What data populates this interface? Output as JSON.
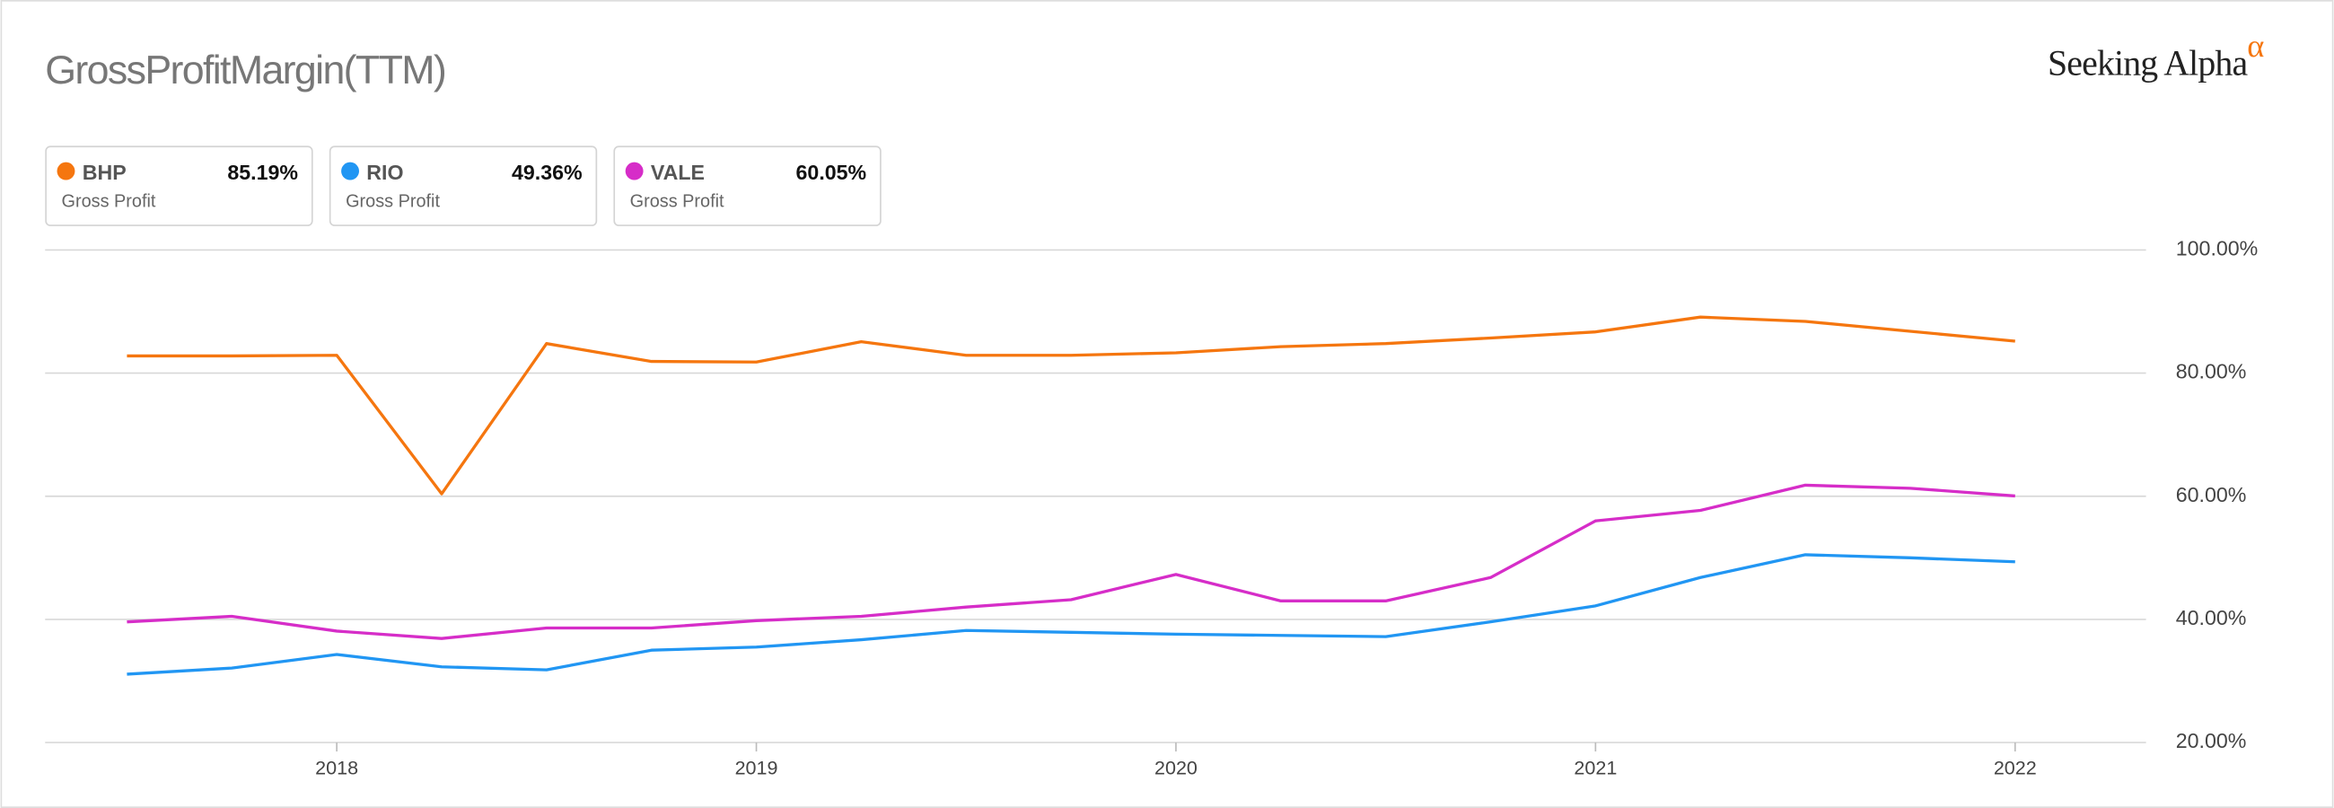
{
  "chart_data": {
    "type": "line",
    "title": "GrossProfitMargin(TTM)",
    "logo": "Seeking Alpha",
    "logo_symbol": "α",
    "x": [
      2017.5,
      2017.75,
      2018.0,
      2018.25,
      2018.5,
      2018.75,
      2019.0,
      2019.25,
      2019.5,
      2019.75,
      2020.0,
      2020.25,
      2020.5,
      2020.75,
      2021.0,
      2021.25,
      2021.5,
      2021.75,
      2022.0
    ],
    "series": [
      {
        "name": "BHP",
        "metric": "Gross Profit",
        "value_label": "85.19%",
        "color": "#f5760f",
        "values": [
          82.8,
          82.8,
          82.9,
          60.4,
          84.8,
          81.9,
          81.8,
          85.1,
          82.9,
          82.9,
          83.3,
          84.3,
          84.8,
          85.7,
          86.7,
          89.1,
          88.4,
          86.8,
          85.19
        ]
      },
      {
        "name": "RIO",
        "metric": "Gross Profit",
        "value_label": "49.36%",
        "color": "#2196f3",
        "values": [
          31.1,
          32.1,
          34.3,
          32.3,
          31.8,
          35.0,
          35.5,
          36.7,
          38.2,
          37.9,
          37.6,
          37.4,
          37.2,
          39.6,
          42.2,
          46.8,
          50.5,
          50.0,
          49.36
        ]
      },
      {
        "name": "VALE",
        "metric": "Gross Profit",
        "value_label": "60.05%",
        "color": "#d62dc8",
        "values": [
          39.6,
          40.5,
          38.1,
          36.9,
          38.6,
          38.6,
          39.8,
          40.5,
          42.0,
          43.2,
          47.3,
          43.0,
          43.0,
          46.8,
          56.0,
          57.7,
          61.8,
          61.3,
          60.05
        ]
      }
    ],
    "xlim": [
      2017.305,
      2022.312
    ],
    "xticks": [
      2018,
      2019,
      2020,
      2021,
      2022
    ],
    "ylim": [
      20,
      100
    ],
    "yticks": [
      {
        "value": 20,
        "label": "20.00%"
      },
      {
        "value": 40,
        "label": "40.00%"
      },
      {
        "value": 60,
        "label": "60.00%"
      },
      {
        "value": 80,
        "label": "80.00%"
      },
      {
        "value": 100,
        "label": "100.00%"
      }
    ],
    "grid": true
  }
}
